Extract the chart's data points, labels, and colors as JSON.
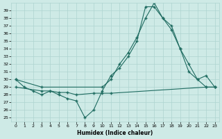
{
  "xlabel": "Humidex (Indice chaleur)",
  "bg_color": "#ceeae6",
  "grid_color": "#aed4d0",
  "line_color": "#1e6b60",
  "xlim": [
    -0.5,
    23.5
  ],
  "ylim": [
    24.5,
    40.0
  ],
  "yticks": [
    25,
    26,
    27,
    28,
    29,
    30,
    31,
    32,
    33,
    34,
    35,
    36,
    37,
    38,
    39
  ],
  "xticks": [
    0,
    1,
    2,
    3,
    4,
    5,
    6,
    7,
    8,
    9,
    10,
    11,
    12,
    13,
    14,
    15,
    16,
    17,
    18,
    19,
    20,
    21,
    22,
    23
  ],
  "series1_x": [
    0,
    1,
    2,
    3,
    4,
    5,
    6,
    7,
    8,
    9,
    10,
    11,
    12,
    13,
    14,
    15,
    16,
    17,
    18,
    19,
    20,
    21,
    22,
    23
  ],
  "series1_y": [
    30,
    29,
    28.5,
    28,
    28.5,
    28,
    27.5,
    27.2,
    25,
    26,
    28.5,
    30.5,
    31.5,
    33,
    35,
    39.5,
    39.5,
    38,
    37,
    34,
    31,
    30,
    29,
    29
  ],
  "series2_x": [
    0,
    3,
    10,
    11,
    12,
    13,
    14,
    15,
    16,
    17,
    18,
    19,
    20,
    21,
    22,
    23
  ],
  "series2_y": [
    30,
    29,
    29,
    30,
    32,
    33.5,
    35.5,
    38,
    40,
    38,
    36.5,
    34,
    32,
    30,
    30.5,
    29
  ],
  "series3_x": [
    0,
    3,
    4,
    5,
    6,
    7,
    9,
    10,
    11,
    22,
    23
  ],
  "series3_y": [
    29,
    28.5,
    28.5,
    28.3,
    28.3,
    28,
    28.2,
    28.2,
    28.2,
    29,
    29
  ]
}
